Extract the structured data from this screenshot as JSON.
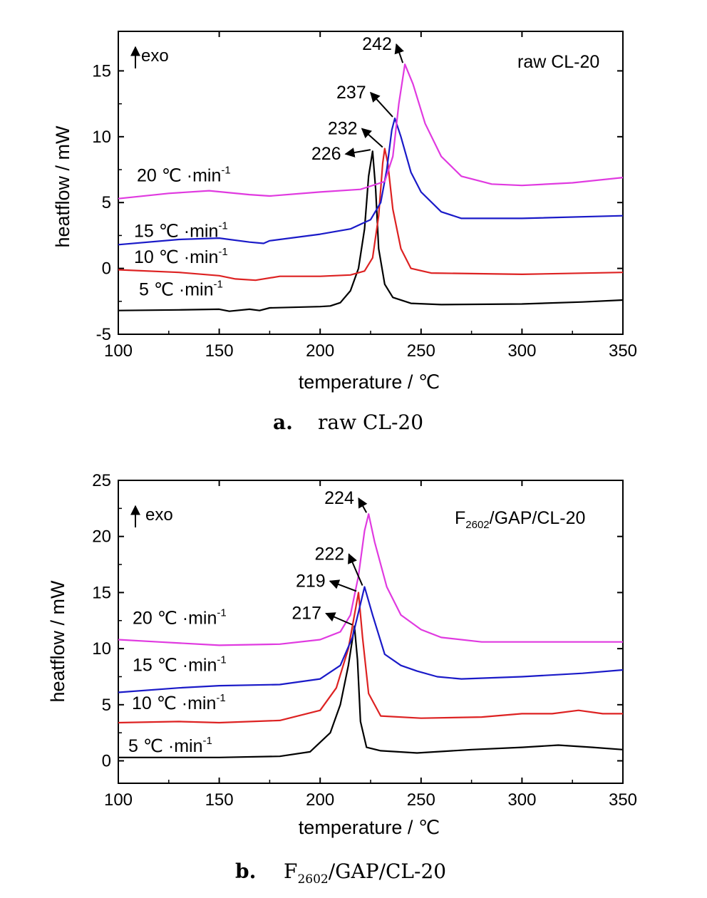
{
  "charts": [
    {
      "caption": {
        "letter": "a.",
        "text": "raw CL-20"
      },
      "corner_label": {
        "main": "raw CL-20",
        "sub": ""
      },
      "exo_label": "exo",
      "chart_data": {
        "type": "line",
        "xlabel": "temperature / ℃",
        "ylabel": "heatflow / mW",
        "xlim": [
          100,
          350
        ],
        "ylim": [
          -5,
          18
        ],
        "xticks": [
          100,
          150,
          200,
          250,
          300,
          350
        ],
        "yticks": [
          -5,
          0,
          5,
          10,
          15
        ],
        "series": [
          {
            "name": "5 ℃·min-1",
            "color": "#000000",
            "rate_label": {
              "main": "5 ℃ ·min",
              "sup": "-1"
            },
            "peak_label": "226",
            "peak_x": 226,
            "peak_y": 8.9,
            "points": [
              [
                100,
                -3.2
              ],
              [
                130,
                -3.15
              ],
              [
                150,
                -3.1
              ],
              [
                155,
                -3.25
              ],
              [
                165,
                -3.1
              ],
              [
                170,
                -3.2
              ],
              [
                175,
                -3.0
              ],
              [
                200,
                -2.9
              ],
              [
                205,
                -2.85
              ],
              [
                210,
                -2.6
              ],
              [
                215,
                -1.7
              ],
              [
                219,
                0
              ],
              [
                222,
                3.0
              ],
              [
                224,
                7.0
              ],
              [
                226,
                8.9
              ],
              [
                227.5,
                6.0
              ],
              [
                229,
                1.5
              ],
              [
                232,
                -1.2
              ],
              [
                236,
                -2.2
              ],
              [
                245,
                -2.65
              ],
              [
                260,
                -2.75
              ],
              [
                300,
                -2.7
              ],
              [
                330,
                -2.55
              ],
              [
                350,
                -2.4
              ]
            ]
          },
          {
            "name": "10 ℃·min-1",
            "color": "#dd2222",
            "rate_label": {
              "main": "10 ℃ ·min",
              "sup": "-1"
            },
            "peak_label": "232",
            "peak_x": 232,
            "peak_y": 9.1,
            "points": [
              [
                100,
                -0.1
              ],
              [
                130,
                -0.3
              ],
              [
                150,
                -0.55
              ],
              [
                158,
                -0.8
              ],
              [
                168,
                -0.9
              ],
              [
                180,
                -0.6
              ],
              [
                200,
                -0.6
              ],
              [
                215,
                -0.5
              ],
              [
                222,
                -0.2
              ],
              [
                226,
                0.8
              ],
              [
                229,
                4.0
              ],
              [
                231,
                8.0
              ],
              [
                232,
                9.1
              ],
              [
                233.5,
                8.0
              ],
              [
                236,
                4.5
              ],
              [
                240,
                1.5
              ],
              [
                245,
                0
              ],
              [
                255,
                -0.35
              ],
              [
                300,
                -0.45
              ],
              [
                350,
                -0.3
              ]
            ]
          },
          {
            "name": "15 ℃·min-1",
            "color": "#1a1ac8",
            "rate_label": {
              "main": "15 ℃ ·min",
              "sup": "-1"
            },
            "peak_label": "237",
            "peak_x": 237,
            "peak_y": 11.4,
            "points": [
              [
                100,
                1.8
              ],
              [
                130,
                2.2
              ],
              [
                150,
                2.3
              ],
              [
                165,
                2.0
              ],
              [
                172,
                1.9
              ],
              [
                175,
                2.1
              ],
              [
                200,
                2.6
              ],
              [
                215,
                3.0
              ],
              [
                225,
                3.7
              ],
              [
                230,
                5.0
              ],
              [
                233,
                7.5
              ],
              [
                235.5,
                10.5
              ],
              [
                237,
                11.4
              ],
              [
                240,
                10.0
              ],
              [
                245,
                7.3
              ],
              [
                250,
                5.8
              ],
              [
                260,
                4.3
              ],
              [
                270,
                3.8
              ],
              [
                300,
                3.8
              ],
              [
                350,
                4.0
              ]
            ]
          },
          {
            "name": "20 ℃·min-1",
            "color": "#e03ae0",
            "rate_label": {
              "main": "20 ℃ ·min",
              "sup": "-1"
            },
            "peak_label": "242",
            "peak_x": 242,
            "peak_y": 15.5,
            "points": [
              [
                100,
                5.3
              ],
              [
                125,
                5.7
              ],
              [
                145,
                5.9
              ],
              [
                165,
                5.6
              ],
              [
                175,
                5.5
              ],
              [
                200,
                5.8
              ],
              [
                220,
                6.0
              ],
              [
                232,
                6.6
              ],
              [
                236,
                8.5
              ],
              [
                239,
                12.5
              ],
              [
                242,
                15.5
              ],
              [
                246,
                14.0
              ],
              [
                252,
                11.0
              ],
              [
                260,
                8.5
              ],
              [
                270,
                7.0
              ],
              [
                285,
                6.4
              ],
              [
                300,
                6.3
              ],
              [
                325,
                6.5
              ],
              [
                350,
                6.9
              ]
            ]
          }
        ]
      }
    },
    {
      "caption": {
        "letter": "b.",
        "text": "F",
        "sub": "2602",
        "rest": "/GAP/CL-20"
      },
      "corner_label": {
        "main": "F",
        "sub": "2602",
        "rest": "/GAP/CL-20"
      },
      "exo_label": "exo",
      "chart_data": {
        "type": "line",
        "xlabel": "temperature / ℃",
        "ylabel": "heatflow / mW",
        "xlim": [
          100,
          350
        ],
        "ylim": [
          -2,
          25
        ],
        "xticks": [
          100,
          150,
          200,
          250,
          300,
          350
        ],
        "yticks": [
          0,
          5,
          10,
          15,
          20,
          25
        ],
        "series": [
          {
            "name": "5 ℃·min-1",
            "color": "#000000",
            "rate_label": {
              "main": "5 ℃ ·min",
              "sup": "-1"
            },
            "peak_label": "217",
            "peak_x": 217,
            "peak_y": 12.0,
            "points": [
              [
                100,
                0.3
              ],
              [
                150,
                0.3
              ],
              [
                180,
                0.4
              ],
              [
                195,
                0.8
              ],
              [
                205,
                2.5
              ],
              [
                210,
                5.0
              ],
              [
                214,
                8.5
              ],
              [
                217,
                12.0
              ],
              [
                218.5,
                9.0
              ],
              [
                220,
                3.5
              ],
              [
                223,
                1.2
              ],
              [
                230,
                0.9
              ],
              [
                248,
                0.7
              ],
              [
                275,
                1.0
              ],
              [
                300,
                1.2
              ],
              [
                318,
                1.4
              ],
              [
                335,
                1.2
              ],
              [
                350,
                1.0
              ]
            ]
          },
          {
            "name": "10 ℃·min-1",
            "color": "#dd2222",
            "rate_label": {
              "main": "10 ℃ ·min",
              "sup": "-1"
            },
            "peak_label": "219",
            "peak_x": 219,
            "peak_y": 15.0,
            "points": [
              [
                100,
                3.4
              ],
              [
                130,
                3.5
              ],
              [
                150,
                3.4
              ],
              [
                180,
                3.6
              ],
              [
                200,
                4.5
              ],
              [
                208,
                6.5
              ],
              [
                214,
                10.0
              ],
              [
                219,
                15.0
              ],
              [
                221,
                11.0
              ],
              [
                224,
                6.0
              ],
              [
                230,
                4.0
              ],
              [
                250,
                3.8
              ],
              [
                280,
                3.9
              ],
              [
                300,
                4.2
              ],
              [
                315,
                4.2
              ],
              [
                328,
                4.5
              ],
              [
                340,
                4.2
              ],
              [
                350,
                4.2
              ]
            ]
          },
          {
            "name": "15 ℃·min-1",
            "color": "#1a1ac8",
            "rate_label": {
              "main": "15 ℃ ·min",
              "sup": "-1"
            },
            "peak_label": "222",
            "peak_x": 222,
            "peak_y": 15.5,
            "points": [
              [
                100,
                6.1
              ],
              [
                130,
                6.5
              ],
              [
                150,
                6.7
              ],
              [
                180,
                6.8
              ],
              [
                200,
                7.3
              ],
              [
                210,
                8.5
              ],
              [
                216,
                11.0
              ],
              [
                222,
                15.5
              ],
              [
                226,
                13.0
              ],
              [
                232,
                9.5
              ],
              [
                240,
                8.5
              ],
              [
                248,
                8.0
              ],
              [
                258,
                7.5
              ],
              [
                270,
                7.3
              ],
              [
                300,
                7.5
              ],
              [
                330,
                7.8
              ],
              [
                350,
                8.1
              ]
            ]
          },
          {
            "name": "20 ℃·min-1",
            "color": "#e03ae0",
            "rate_label": {
              "main": "20 ℃ ·min",
              "sup": "-1"
            },
            "peak_label": "224",
            "peak_x": 224,
            "peak_y": 22.0,
            "points": [
              [
                100,
                10.8
              ],
              [
                120,
                10.6
              ],
              [
                150,
                10.3
              ],
              [
                180,
                10.4
              ],
              [
                200,
                10.8
              ],
              [
                210,
                11.5
              ],
              [
                215,
                13.0
              ],
              [
                219,
                16.5
              ],
              [
                222,
                20.5
              ],
              [
                224,
                22.0
              ],
              [
                227,
                19.5
              ],
              [
                233,
                15.5
              ],
              [
                240,
                13.0
              ],
              [
                250,
                11.7
              ],
              [
                260,
                11.0
              ],
              [
                280,
                10.6
              ],
              [
                300,
                10.6
              ],
              [
                350,
                10.6
              ]
            ]
          }
        ]
      }
    }
  ]
}
